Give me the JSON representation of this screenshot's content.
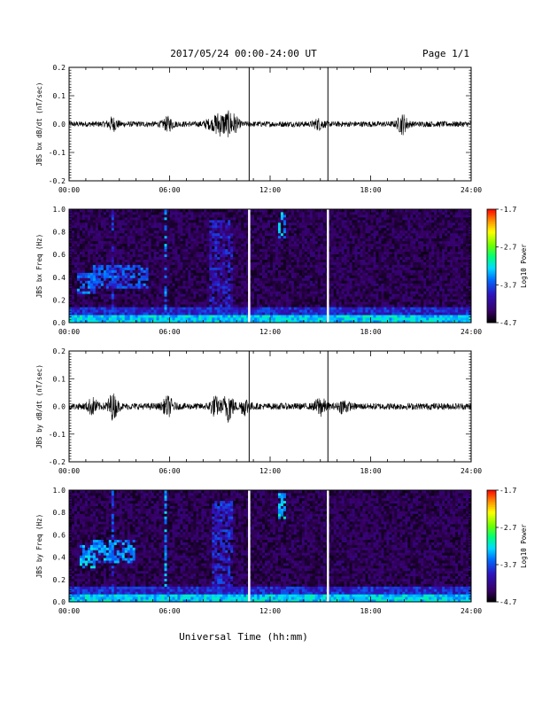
{
  "header": {
    "date_range": "2017/05/24  00:00-24:00 UT",
    "page": "Page 1/1"
  },
  "chart_data": [
    {
      "type": "line",
      "ylabel": "JBS bx dB/dt (nT/sec)",
      "xlim": [
        0,
        24
      ],
      "ylim": [
        -0.2,
        0.2
      ],
      "x_tick_labels": [
        "00:00",
        "06:00",
        "12:00",
        "18:00",
        "24:00"
      ],
      "y_tick_labels": [
        "0.2",
        "0.1",
        "0.0",
        "-0.1",
        "-0.2"
      ],
      "y_tick_values": [
        0.2,
        0.1,
        0.0,
        -0.1,
        -0.2
      ],
      "noise_amplitude_base": 0.01,
      "bursts": [
        {
          "x": 2.6,
          "amp": 0.02
        },
        {
          "x": 5.9,
          "amp": 0.02
        },
        {
          "x": 8.3,
          "amp": 0.01
        },
        {
          "x": 8.9,
          "amp": 0.035
        },
        {
          "x": 9.4,
          "amp": 0.03
        },
        {
          "x": 9.8,
          "amp": 0.03
        },
        {
          "x": 14.9,
          "amp": 0.015
        },
        {
          "x": 19.9,
          "amp": 0.03
        }
      ],
      "markers": [
        10.75,
        15.45
      ]
    },
    {
      "type": "heatmap",
      "ylabel": "JBS bx Freq (Hz)",
      "xlim": [
        0,
        24
      ],
      "ylim": [
        0.0,
        1.0
      ],
      "x_tick_labels": [
        "00:00",
        "06:00",
        "12:00",
        "18:00",
        "24:00"
      ],
      "y_tick_labels": [
        "1.0",
        "0.8",
        "0.6",
        "0.4",
        "0.2",
        "0.0"
      ],
      "y_tick_values": [
        1.0,
        0.8,
        0.6,
        0.4,
        0.2,
        0.0
      ],
      "colorbar": {
        "label": "Log10 Power",
        "tick_labels": [
          "-1.7",
          "-2.7",
          "-3.7",
          "-4.7"
        ],
        "range": [
          -4.7,
          -1.7
        ]
      },
      "features": [
        {
          "x0": 0.5,
          "x1": 1.6,
          "y0": 0.25,
          "y1": 0.45,
          "level": -3.6
        },
        {
          "x0": 1.5,
          "x1": 4.8,
          "y0": 0.3,
          "y1": 0.5,
          "level": -3.7
        },
        {
          "x0": 2.5,
          "x1": 2.7,
          "y0": 0.0,
          "y1": 1.0,
          "level": -3.9
        },
        {
          "x0": 5.7,
          "x1": 5.9,
          "y0": 0.0,
          "y1": 1.0,
          "level": -3.5
        },
        {
          "x0": 8.4,
          "x1": 9.8,
          "y0": 0.0,
          "y1": 0.9,
          "level": -4.0
        },
        {
          "x0": 12.4,
          "x1": 12.9,
          "y0": 0.75,
          "y1": 0.98,
          "level": -3.4
        }
      ],
      "markers": [
        10.75,
        15.45
      ]
    },
    {
      "type": "line",
      "ylabel": "JBS by dB/dt (nT/sec)",
      "xlim": [
        0,
        24
      ],
      "ylim": [
        -0.2,
        0.2
      ],
      "x_tick_labels": [
        "00:00",
        "06:00",
        "12:00",
        "18:00",
        "24:00"
      ],
      "y_tick_labels": [
        "0.2",
        "0.1",
        "0.0",
        "-0.1",
        "-0.2"
      ],
      "y_tick_values": [
        0.2,
        0.1,
        0.0,
        -0.1,
        -0.2
      ],
      "noise_amplitude_base": 0.012,
      "bursts": [
        {
          "x": 1.4,
          "amp": 0.025
        },
        {
          "x": 2.6,
          "amp": 0.04
        },
        {
          "x": 5.9,
          "amp": 0.03
        },
        {
          "x": 8.7,
          "amp": 0.03
        },
        {
          "x": 9.5,
          "amp": 0.05
        },
        {
          "x": 10.5,
          "amp": 0.025
        },
        {
          "x": 15.0,
          "amp": 0.03
        },
        {
          "x": 16.4,
          "amp": 0.02
        }
      ],
      "markers": [
        10.75,
        15.45
      ]
    },
    {
      "type": "heatmap",
      "ylabel": "JBS by Freq (Hz)",
      "xlim": [
        0,
        24
      ],
      "ylim": [
        0.0,
        1.0
      ],
      "x_tick_labels": [
        "00:00",
        "06:00",
        "12:00",
        "18:00",
        "24:00"
      ],
      "y_tick_labels": [
        "1.0",
        "0.8",
        "0.6",
        "0.4",
        "0.2",
        "0.0"
      ],
      "y_tick_values": [
        1.0,
        0.8,
        0.6,
        0.4,
        0.2,
        0.0
      ],
      "colorbar": {
        "label": "Log10 Power",
        "tick_labels": [
          "-1.7",
          "-2.7",
          "-3.7",
          "-4.7"
        ],
        "range": [
          -4.7,
          -1.7
        ]
      },
      "features": [
        {
          "x0": 0.7,
          "x1": 1.5,
          "y0": 0.3,
          "y1": 0.5,
          "level": -3.4
        },
        {
          "x0": 1.5,
          "x1": 4.0,
          "y0": 0.35,
          "y1": 0.55,
          "level": -3.5
        },
        {
          "x0": 2.5,
          "x1": 2.7,
          "y0": 0.0,
          "y1": 1.0,
          "level": -3.8
        },
        {
          "x0": 5.7,
          "x1": 5.9,
          "y0": 0.0,
          "y1": 1.0,
          "level": -3.4
        },
        {
          "x0": 8.5,
          "x1": 9.8,
          "y0": 0.0,
          "y1": 0.9,
          "level": -3.9
        },
        {
          "x0": 12.4,
          "x1": 12.9,
          "y0": 0.75,
          "y1": 0.98,
          "level": -3.3
        }
      ],
      "markers": [
        10.75,
        15.45
      ]
    }
  ],
  "xaxis": {
    "label": "Universal Time (hh:mm)"
  }
}
